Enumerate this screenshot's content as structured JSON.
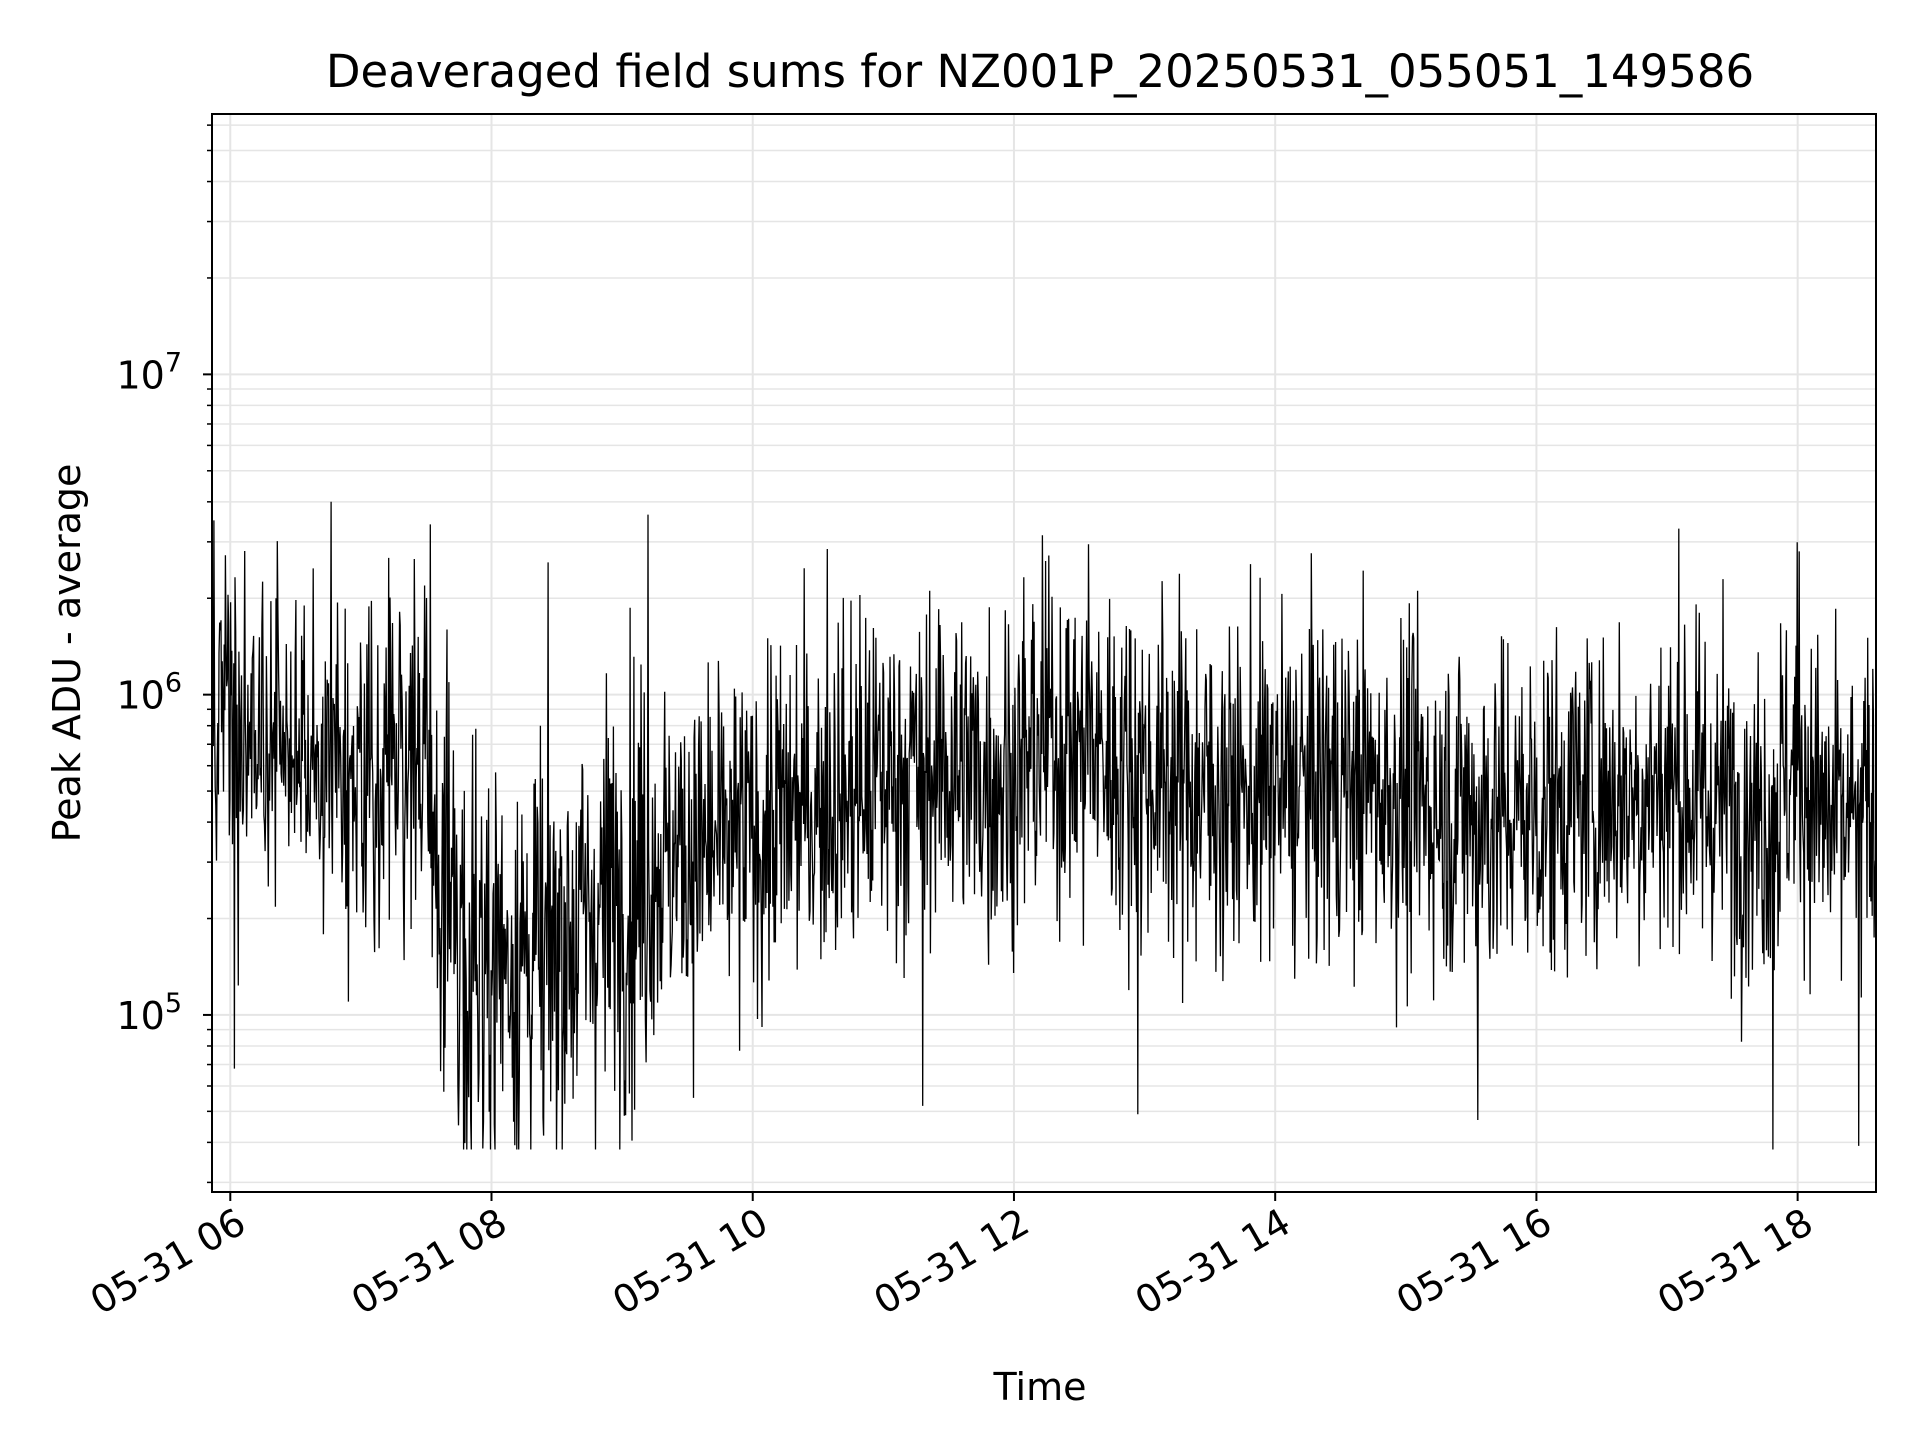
{
  "chart_data": {
    "type": "line",
    "title": "Deaveraged field sums for NZ001P_20250531_055051_149586",
    "xlabel": "Time",
    "ylabel": "Peak ADU - average",
    "x_ticks": [
      {
        "value": 6,
        "label": "05-31 06"
      },
      {
        "value": 8,
        "label": "05-31 08"
      },
      {
        "value": 10,
        "label": "05-31 10"
      },
      {
        "value": 12,
        "label": "05-31 12"
      },
      {
        "value": 14,
        "label": "05-31 14"
      },
      {
        "value": 16,
        "label": "05-31 16"
      },
      {
        "value": 18,
        "label": "05-31 18"
      }
    ],
    "y_ticks": [
      {
        "value": 100000,
        "base": "10",
        "exp": "5"
      },
      {
        "value": 1000000,
        "base": "10",
        "exp": "6"
      },
      {
        "value": 10000000,
        "base": "10",
        "exp": "7"
      }
    ],
    "x_unit": "hour of 2025-05-31",
    "xlim": [
      5.86,
      18.6
    ],
    "ylim": [
      28000,
      65000000
    ],
    "yscale": "log",
    "grid": true,
    "line_color": "#000000",
    "grid_color": "#e5e5e5",
    "series": [
      {
        "x": [
          5.86,
          6.0,
          6.25,
          6.5,
          6.75,
          7.0,
          7.25,
          7.5,
          7.6,
          7.75,
          8.0,
          8.25,
          8.5,
          8.75,
          9.0,
          9.25,
          9.5,
          9.75,
          10.0,
          10.25,
          10.5,
          10.75,
          11.0,
          11.25,
          11.5,
          11.75,
          12.0,
          12.25,
          12.5,
          12.75,
          13.0,
          13.25,
          13.5,
          13.75,
          14.0,
          14.25,
          14.5,
          14.75,
          15.0,
          15.25,
          15.5,
          15.75,
          16.0,
          16.25,
          16.5,
          16.75,
          17.0,
          17.25,
          17.5,
          17.75,
          18.0,
          18.25,
          18.6
        ],
        "y": [
          900000,
          750000,
          650000,
          700000,
          620000,
          580000,
          620000,
          600000,
          250000,
          180000,
          160000,
          150000,
          170000,
          200000,
          250000,
          300000,
          320000,
          330000,
          360000,
          420000,
          470000,
          500000,
          550000,
          590000,
          610000,
          560000,
          560000,
          750000,
          680000,
          620000,
          570000,
          540000,
          500000,
          480000,
          500000,
          520000,
          530000,
          510000,
          480000,
          450000,
          440000,
          420000,
          430000,
          470000,
          490000,
          500000,
          520000,
          480000,
          460000,
          420000,
          620000,
          380000,
          420000
        ],
        "spikes": [
          {
            "x": 6.77,
            "y": 4000000
          },
          {
            "x": 7.53,
            "y": 3400000
          },
          {
            "x": 9.2,
            "y": 3650000
          },
          {
            "x": 10.57,
            "y": 2850000
          },
          {
            "x": 12.57,
            "y": 2950000
          },
          {
            "x": 17.09,
            "y": 3300000
          },
          {
            "x": 18.01,
            "y": 2800000
          },
          {
            "x": 17.81,
            "y": 38000
          },
          {
            "x": 18.47,
            "y": 39000
          },
          {
            "x": 8.4,
            "y": 42000
          },
          {
            "x": 12.95,
            "y": 49000
          },
          {
            "x": 15.55,
            "y": 47000
          },
          {
            "x": 6.03,
            "y": 68000
          },
          {
            "x": 11.3,
            "y": 52000
          }
        ]
      }
    ]
  }
}
